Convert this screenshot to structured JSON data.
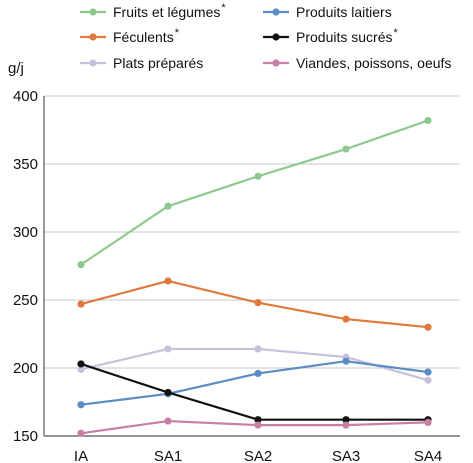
{
  "chart_data": {
    "type": "line",
    "ylabel": "g/j",
    "xlabel": "",
    "ylim": [
      150,
      400
    ],
    "yticks": [
      150,
      200,
      250,
      300,
      350,
      400
    ],
    "categories": [
      "IA",
      "SA1",
      "SA2",
      "SA3",
      "SA4"
    ],
    "grid": "horizontal",
    "legend_position": "top",
    "series": [
      {
        "name": "Fruits et légumes",
        "star": "*",
        "color": "#8dc98d",
        "values": [
          276,
          319,
          341,
          361,
          382
        ]
      },
      {
        "name": "Féculents",
        "star": "*",
        "color": "#e07a3c",
        "values": [
          247,
          264,
          248,
          236,
          230
        ]
      },
      {
        "name": "Plats préparés",
        "star": "",
        "color": "#c7bfdc",
        "values": [
          199,
          214,
          214,
          208,
          191
        ]
      },
      {
        "name": "Produits laitiers",
        "star": "",
        "color": "#5b8cc4",
        "values": [
          173,
          181,
          196,
          205,
          197
        ]
      },
      {
        "name": "Produits sucrés",
        "star": "*",
        "color": "#111111",
        "values": [
          203,
          182,
          162,
          162,
          162
        ]
      },
      {
        "name": "Viandes, poissons, oeufs",
        "star": "",
        "color": "#c77fa6",
        "values": [
          152,
          161,
          158,
          158,
          160
        ]
      }
    ]
  }
}
